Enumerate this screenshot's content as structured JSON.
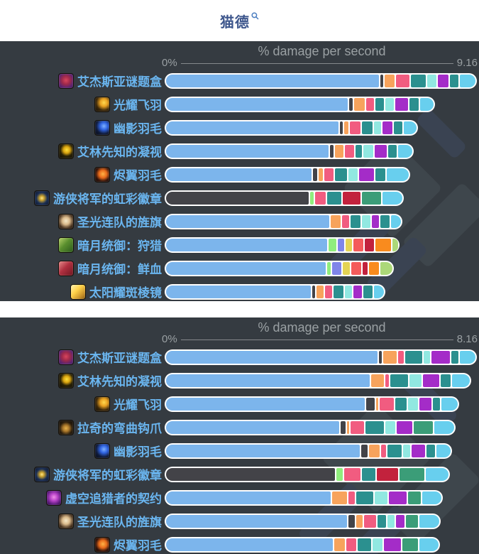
{
  "page": {
    "title": "猫德"
  },
  "palette": {
    "blue": "#7cb5ec",
    "dark": "#434348",
    "lime": "#90ed7d",
    "orange": "#f7a35c",
    "periwinkle": "#8085e9",
    "pink": "#f15c80",
    "yellow": "#e4d354",
    "teal": "#2b908f",
    "salmon": "#f45b5b",
    "mint": "#91e8e1",
    "purple": "#a42cc8",
    "crimson": "#c2223d",
    "seagreen": "#3b9d78",
    "sky": "#68cfee",
    "brightorange": "#f98b1e",
    "yellowgreen": "#acd879"
  },
  "chart_data": [
    {
      "type": "bar",
      "title": "% damage per second",
      "axis_min_label": "0%",
      "axis_max_label": "9.16",
      "xlim": [
        0,
        9.16
      ],
      "legend": "none",
      "orientation": "horizontal-stacked",
      "rows": [
        {
          "label": "艾杰斯亚谜题盒",
          "icon": "puzzle-box",
          "total": 9.16,
          "segments": [
            [
              "blue",
              6.55
            ],
            [
              "dark",
              0.08
            ],
            [
              "orange",
              0.31
            ],
            [
              "pink",
              0.41
            ],
            [
              "teal",
              0.46
            ],
            [
              "mint",
              0.28
            ],
            [
              "purple",
              0.33
            ],
            [
              "teal",
              0.26
            ],
            [
              "sky",
              0.48
            ]
          ]
        },
        {
          "label": "光耀飞羽",
          "icon": "gold-feather",
          "total": 7.93,
          "segments": [
            [
              "blue",
              5.63
            ],
            [
              "dark",
              0.11
            ],
            [
              "orange",
              0.32
            ],
            [
              "pink",
              0.25
            ],
            [
              "teal",
              0.26
            ],
            [
              "mint",
              0.26
            ],
            [
              "purple",
              0.39
            ],
            [
              "teal",
              0.3
            ],
            [
              "sky",
              0.41
            ]
          ]
        },
        {
          "label": "幽影羽毛",
          "icon": "shadow-feather",
          "total": 7.43,
          "segments": [
            [
              "blue",
              5.35
            ],
            [
              "dark",
              0.1
            ],
            [
              "orange",
              0.13
            ],
            [
              "pink",
              0.32
            ],
            [
              "teal",
              0.35
            ],
            [
              "mint",
              0.21
            ],
            [
              "purple",
              0.3
            ],
            [
              "teal",
              0.27
            ],
            [
              "sky",
              0.4
            ]
          ]
        },
        {
          "label": "艾林先知的凝视",
          "icon": "prophet-eye",
          "total": 7.31,
          "segments": [
            [
              "blue",
              5.05
            ],
            [
              "dark",
              0.12
            ],
            [
              "orange",
              0.26
            ],
            [
              "pink",
              0.28
            ],
            [
              "teal",
              0.21
            ],
            [
              "mint",
              0.3
            ],
            [
              "purple",
              0.38
            ],
            [
              "teal",
              0.26
            ],
            [
              "sky",
              0.45
            ]
          ]
        },
        {
          "label": "烬翼羽毛",
          "icon": "ember-feather",
          "total": 7.2,
          "segments": [
            [
              "blue",
              4.54
            ],
            [
              "dark",
              0.12
            ],
            [
              "orange",
              0.14
            ],
            [
              "pink",
              0.29
            ],
            [
              "teal",
              0.37
            ],
            [
              "mint",
              0.29
            ],
            [
              "purple",
              0.46
            ],
            [
              "teal",
              0.3
            ],
            [
              "sky",
              0.69
            ]
          ]
        },
        {
          "label": "游侠将军的虹彩徽章",
          "icon": "rainbow-badge",
          "total": 7.02,
          "segments": [
            [
              "dark",
              4.39
            ],
            [
              "lime",
              0.12
            ],
            [
              "pink",
              0.31
            ],
            [
              "teal",
              0.45
            ],
            [
              "crimson",
              0.54
            ],
            [
              "seagreen",
              0.59
            ],
            [
              "sky",
              0.62
            ]
          ]
        },
        {
          "label": "圣光连队的旌旗",
          "icon": "holy-banner",
          "total": 6.97,
          "segments": [
            [
              "blue",
              5.06
            ],
            [
              "orange",
              0.31
            ],
            [
              "pink",
              0.21
            ],
            [
              "teal",
              0.31
            ],
            [
              "mint",
              0.28
            ],
            [
              "purple",
              0.21
            ],
            [
              "teal",
              0.28
            ],
            [
              "sky",
              0.31
            ]
          ]
        },
        {
          "label": "暗月统御：狩猎",
          "icon": "deck-hunt",
          "total": 6.89,
          "segments": [
            [
              "blue",
              5.0
            ],
            [
              "lime",
              0.24
            ],
            [
              "periwinkle",
              0.19
            ],
            [
              "yellow",
              0.21
            ],
            [
              "salmon",
              0.3
            ],
            [
              "crimson",
              0.29
            ],
            [
              "brightorange",
              0.49
            ],
            [
              "yellowgreen",
              0.17
            ]
          ]
        },
        {
          "label": "暗月统御：鲜血",
          "icon": "deck-blood",
          "total": 6.73,
          "segments": [
            [
              "blue",
              4.95
            ],
            [
              "lime",
              0.12
            ],
            [
              "periwinkle",
              0.28
            ],
            [
              "yellow",
              0.22
            ],
            [
              "salmon",
              0.31
            ],
            [
              "crimson",
              0.17
            ],
            [
              "brightorange",
              0.3
            ],
            [
              "yellowgreen",
              0.38
            ]
          ]
        },
        {
          "label": "太阳耀斑棱镜",
          "icon": "sun-prism",
          "total": 6.47,
          "segments": [
            [
              "blue",
              4.53
            ],
            [
              "dark",
              0.1
            ],
            [
              "orange",
              0.23
            ],
            [
              "pink",
              0.22
            ],
            [
              "teal",
              0.31
            ],
            [
              "mint",
              0.22
            ],
            [
              "purple",
              0.26
            ],
            [
              "teal",
              0.29
            ],
            [
              "sky",
              0.31
            ]
          ]
        }
      ]
    },
    {
      "type": "bar",
      "title": "% damage per second",
      "axis_min_label": "0%",
      "axis_max_label": "8.16",
      "xlim": [
        0,
        8.16
      ],
      "legend": "none",
      "orientation": "horizontal-stacked",
      "rows": [
        {
          "label": "艾杰斯亚谜题盒",
          "icon": "puzzle-box",
          "total": 8.16,
          "segments": [
            [
              "blue",
              5.79
            ],
            [
              "dark",
              0.07
            ],
            [
              "orange",
              0.37
            ],
            [
              "pink",
              0.17
            ],
            [
              "teal",
              0.45
            ],
            [
              "mint",
              0.19
            ],
            [
              "purple",
              0.49
            ],
            [
              "teal",
              0.2
            ],
            [
              "sky",
              0.43
            ]
          ]
        },
        {
          "label": "艾林先知的凝视",
          "icon": "prophet-eye",
          "total": 8.01,
          "segments": [
            [
              "blue",
              5.55
            ],
            [
              "orange",
              0.35
            ],
            [
              "pink",
              0.1
            ],
            [
              "teal",
              0.48
            ],
            [
              "mint",
              0.34
            ],
            [
              "purple",
              0.43
            ],
            [
              "teal",
              0.28
            ],
            [
              "sky",
              0.48
            ]
          ]
        },
        {
          "label": "光耀飞羽",
          "icon": "gold-feather",
          "total": 7.7,
          "segments": [
            [
              "blue",
              5.46
            ],
            [
              "dark",
              0.22
            ],
            [
              "orange",
              0.06
            ],
            [
              "pink",
              0.39
            ],
            [
              "teal",
              0.31
            ],
            [
              "mint",
              0.29
            ],
            [
              "purple",
              0.33
            ],
            [
              "teal",
              0.18
            ],
            [
              "sky",
              0.46
            ]
          ]
        },
        {
          "label": "拉奇的弯曲钩爪",
          "icon": "curved-hook",
          "total": 7.6,
          "segments": [
            [
              "blue",
              4.75
            ],
            [
              "dark",
              0.14
            ],
            [
              "orange",
              0.06
            ],
            [
              "pink",
              0.37
            ],
            [
              "teal",
              0.51
            ],
            [
              "mint",
              0.28
            ],
            [
              "purple",
              0.42
            ],
            [
              "seagreen",
              0.53
            ],
            [
              "sky",
              0.54
            ]
          ]
        },
        {
          "label": "幽影羽毛",
          "icon": "shadow-feather",
          "total": 7.51,
          "segments": [
            [
              "blue",
              5.33
            ],
            [
              "dark",
              0.17
            ],
            [
              "orange",
              0.29
            ],
            [
              "pink",
              0.14
            ],
            [
              "teal",
              0.39
            ],
            [
              "mint",
              0.19
            ],
            [
              "purple",
              0.38
            ],
            [
              "teal",
              0.23
            ],
            [
              "sky",
              0.39
            ]
          ]
        },
        {
          "label": "游侠将军的虹彩徽章",
          "icon": "rainbow-badge",
          "total": 7.45,
          "segments": [
            [
              "dark",
              4.59
            ],
            [
              "lime",
              0.19
            ],
            [
              "pink",
              0.43
            ],
            [
              "teal",
              0.38
            ],
            [
              "crimson",
              0.57
            ],
            [
              "seagreen",
              0.67
            ],
            [
              "sky",
              0.62
            ]
          ]
        },
        {
          "label": "虚空追猎者的契约",
          "icon": "void-contract",
          "total": 7.27,
          "segments": [
            [
              "blue",
              4.51
            ],
            [
              "orange",
              0.4
            ],
            [
              "pink",
              0.19
            ],
            [
              "teal",
              0.46
            ],
            [
              "mint",
              0.34
            ],
            [
              "purple",
              0.49
            ],
            [
              "seagreen",
              0.35
            ],
            [
              "sky",
              0.53
            ]
          ]
        },
        {
          "label": "圣光连队的旌旗",
          "icon": "holy-banner",
          "total": 7.21,
          "segments": [
            [
              "blue",
              4.98
            ],
            [
              "dark",
              0.19
            ],
            [
              "orange",
              0.16
            ],
            [
              "pink",
              0.34
            ],
            [
              "teal",
              0.23
            ],
            [
              "mint",
              0.2
            ],
            [
              "purple",
              0.24
            ],
            [
              "seagreen",
              0.33
            ],
            [
              "sky",
              0.54
            ]
          ]
        },
        {
          "label": "烬翼羽毛",
          "icon": "ember-feather",
          "total": 7.19,
          "segments": [
            [
              "blue",
              4.58
            ],
            [
              "orange",
              0.29
            ],
            [
              "pink",
              0.26
            ],
            [
              "teal",
              0.37
            ],
            [
              "mint",
              0.28
            ],
            [
              "purple",
              0.46
            ],
            [
              "seagreen",
              0.43
            ],
            [
              "sky",
              0.52
            ]
          ]
        }
      ]
    }
  ]
}
